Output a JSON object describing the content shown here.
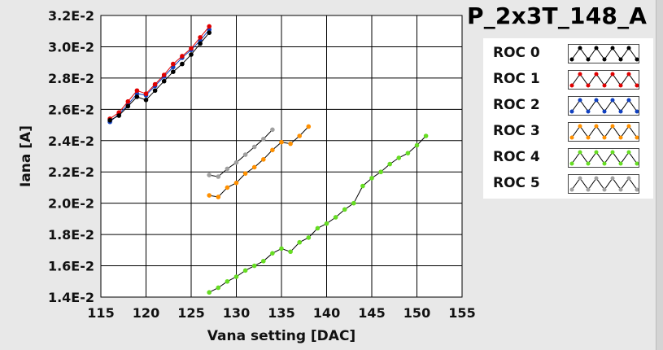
{
  "chart_data": {
    "type": "line",
    "title": "P_2x3T_148_A",
    "xlabel": "Vana setting [DAC]",
    "ylabel": "Iana [A]",
    "xlim": [
      115,
      155
    ],
    "ylim": [
      0.014,
      0.032
    ],
    "x_ticks": [
      115,
      120,
      125,
      130,
      135,
      140,
      145,
      150,
      155
    ],
    "x_tick_labels": [
      "115",
      "120",
      "125",
      "130",
      "135",
      "140",
      "145",
      "150",
      "155"
    ],
    "y_ticks": [
      0.014,
      0.016,
      0.018,
      0.02,
      0.022,
      0.024,
      0.026,
      0.028,
      0.03,
      0.032
    ],
    "y_tick_labels": [
      "1.4E-2",
      "1.6E-2",
      "1.8E-2",
      "2.0E-2",
      "2.2E-2",
      "2.4E-2",
      "2.6E-2",
      "2.8E-2",
      "3.0E-2",
      "3.2E-2"
    ],
    "grid": true,
    "legend_position": "right",
    "series": [
      {
        "name": "ROC 0",
        "color": "#000000",
        "x": [
          116,
          117,
          118,
          119,
          120,
          121,
          122,
          123,
          124,
          125,
          126,
          127
        ],
        "y": [
          0.0253,
          0.0256,
          0.0262,
          0.0268,
          0.0266,
          0.0272,
          0.0278,
          0.0284,
          0.0289,
          0.0295,
          0.0302,
          0.0309
        ]
      },
      {
        "name": "ROC 1",
        "color": "#e00000",
        "x": [
          116,
          117,
          118,
          119,
          120,
          121,
          122,
          123,
          124,
          125,
          126,
          127
        ],
        "y": [
          0.0254,
          0.0258,
          0.0265,
          0.0272,
          0.027,
          0.0276,
          0.0282,
          0.0289,
          0.0294,
          0.0299,
          0.0306,
          0.0313
        ]
      },
      {
        "name": "ROC 2",
        "color": "#1040c0",
        "x": [
          116,
          117,
          118,
          119,
          120,
          121,
          122,
          123,
          124,
          125,
          126,
          127
        ],
        "y": [
          0.0252,
          0.0257,
          0.0263,
          0.027,
          0.0269,
          0.0275,
          0.0281,
          0.0287,
          0.0293,
          0.0298,
          0.0304,
          0.0311
        ]
      },
      {
        "name": "ROC 3",
        "color": "#ff9000",
        "x": [
          127,
          128,
          129,
          130,
          131,
          132,
          133,
          134,
          135,
          136,
          137,
          138
        ],
        "y": [
          0.0205,
          0.0204,
          0.021,
          0.0213,
          0.0219,
          0.0223,
          0.0228,
          0.0234,
          0.0239,
          0.0238,
          0.0243,
          0.0249
        ]
      },
      {
        "name": "ROC 4",
        "color": "#66dd22",
        "x": [
          127,
          128,
          129,
          130,
          131,
          132,
          133,
          134,
          135,
          136,
          137,
          138,
          139,
          140,
          141,
          142,
          143,
          144,
          145,
          146,
          147,
          148,
          149,
          150,
          151
        ],
        "y": [
          0.0143,
          0.0146,
          0.015,
          0.0153,
          0.0157,
          0.016,
          0.0163,
          0.0168,
          0.0171,
          0.0169,
          0.0175,
          0.0178,
          0.0184,
          0.0187,
          0.0191,
          0.0196,
          0.02,
          0.0211,
          0.0216,
          0.022,
          0.0225,
          0.0229,
          0.0232,
          0.0237,
          0.0243
        ]
      },
      {
        "name": "ROC 5",
        "color": "#a0a0a0",
        "x": [
          127,
          128,
          129,
          130,
          131,
          132,
          133,
          134
        ],
        "y": [
          0.0218,
          0.0217,
          0.0222,
          0.0226,
          0.0231,
          0.0236,
          0.0241,
          0.0247
        ]
      }
    ]
  }
}
